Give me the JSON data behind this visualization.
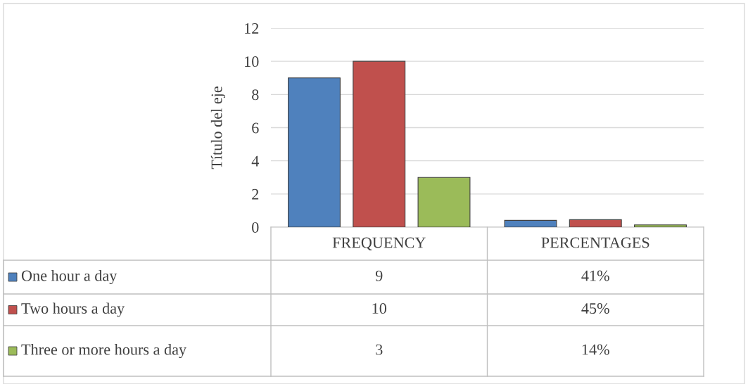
{
  "chart_data": {
    "type": "bar",
    "ylabel": "Título del eje",
    "categories": [
      "FREQUENCY",
      "PERCENTAGES"
    ],
    "series": [
      {
        "name": "One hour a day",
        "color": "#4f81bd",
        "values": [
          9,
          0.41
        ],
        "value_labels": [
          "9",
          "41%"
        ]
      },
      {
        "name": "Two hours a day",
        "color": "#c0504d",
        "values": [
          10,
          0.45
        ],
        "value_labels": [
          "10",
          "45%"
        ]
      },
      {
        "name": "Three or more hours a day",
        "color": "#9bbb59",
        "values": [
          3,
          0.14
        ],
        "value_labels": [
          "3",
          "14%"
        ]
      }
    ],
    "ylim": [
      0,
      12
    ],
    "yticks": [
      0,
      2,
      4,
      6,
      8,
      10,
      12
    ],
    "grid": "y",
    "legend": "bottom"
  }
}
